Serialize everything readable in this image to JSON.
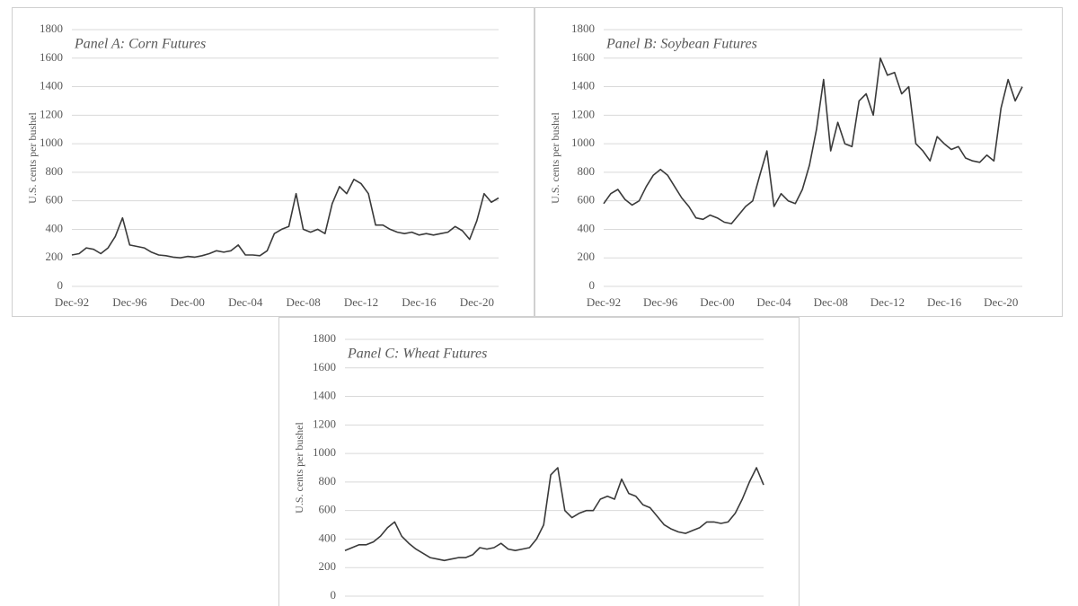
{
  "chart_data": [
    {
      "type": "line",
      "title": "Panel A: Corn Futures",
      "y_label": "U.S. cents per bushel",
      "categories": [
        "Dec-92",
        null,
        null,
        null,
        null,
        null,
        null,
        null,
        "Dec-96",
        null,
        null,
        null,
        null,
        null,
        null,
        null,
        "Dec-00",
        null,
        null,
        null,
        null,
        null,
        null,
        null,
        "Dec-04",
        null,
        null,
        null,
        null,
        null,
        null,
        null,
        "Dec-08",
        null,
        null,
        null,
        null,
        null,
        null,
        null,
        "Dec-12",
        null,
        null,
        null,
        null,
        null,
        null,
        null,
        "Dec-16",
        null,
        null,
        null,
        null,
        null,
        null,
        null,
        "Dec-20",
        null,
        null,
        null
      ],
      "values": [
        220,
        230,
        270,
        260,
        230,
        270,
        350,
        480,
        290,
        280,
        270,
        240,
        220,
        215,
        205,
        200,
        210,
        205,
        215,
        230,
        250,
        240,
        250,
        290,
        220,
        220,
        215,
        250,
        370,
        400,
        420,
        650,
        400,
        380,
        400,
        370,
        580,
        700,
        650,
        750,
        720,
        650,
        430,
        430,
        400,
        380,
        370,
        380,
        360,
        370,
        360,
        370,
        380,
        420,
        390,
        330,
        460,
        650,
        590,
        620
      ],
      "color": "#3a3a3a",
      "ylim": [
        0,
        1800
      ],
      "yticks": [
        0,
        200,
        400,
        600,
        800,
        1000,
        1200,
        1400,
        1600,
        1800
      ],
      "grid": true
    },
    {
      "type": "line",
      "title": "Panel B: Soybean Futures",
      "y_label": "U.S. cents per bushel",
      "categories": [
        "Dec-92",
        null,
        null,
        null,
        null,
        null,
        null,
        null,
        "Dec-96",
        null,
        null,
        null,
        null,
        null,
        null,
        null,
        "Dec-00",
        null,
        null,
        null,
        null,
        null,
        null,
        null,
        "Dec-04",
        null,
        null,
        null,
        null,
        null,
        null,
        null,
        "Dec-08",
        null,
        null,
        null,
        null,
        null,
        null,
        null,
        "Dec-12",
        null,
        null,
        null,
        null,
        null,
        null,
        null,
        "Dec-16",
        null,
        null,
        null,
        null,
        null,
        null,
        null,
        "Dec-20",
        null,
        null,
        null
      ],
      "values": [
        580,
        650,
        680,
        610,
        570,
        600,
        700,
        780,
        820,
        780,
        700,
        620,
        560,
        480,
        470,
        500,
        480,
        450,
        440,
        500,
        560,
        600,
        780,
        950,
        560,
        650,
        600,
        580,
        680,
        850,
        1100,
        1450,
        950,
        1150,
        1000,
        980,
        1300,
        1350,
        1200,
        1600,
        1480,
        1500,
        1350,
        1400,
        1000,
        950,
        880,
        1050,
        1000,
        960,
        980,
        900,
        880,
        870,
        920,
        880,
        1250,
        1450,
        1300,
        1400
      ],
      "color": "#3a3a3a",
      "ylim": [
        0,
        1800
      ],
      "yticks": [
        0,
        200,
        400,
        600,
        800,
        1000,
        1200,
        1400,
        1600,
        1800
      ],
      "grid": true
    },
    {
      "type": "line",
      "title": "Panel C: Wheat Futures",
      "y_label": "U.S. cents per bushel",
      "values": [
        320,
        340,
        360,
        360,
        380,
        420,
        480,
        520,
        420,
        370,
        330,
        300,
        270,
        260,
        250,
        260,
        270,
        270,
        290,
        340,
        330,
        340,
        370,
        330,
        320,
        330,
        340,
        400,
        500,
        850,
        900,
        600,
        550,
        580,
        600,
        600,
        680,
        700,
        680,
        820,
        720,
        700,
        640,
        620,
        560,
        500,
        470,
        450,
        440,
        460,
        480,
        520,
        520,
        510,
        520,
        580,
        680,
        800,
        900,
        780
      ],
      "color": "#3a3a3a",
      "ylim": [
        0,
        1800
      ],
      "yticks": [
        0,
        200,
        400,
        600,
        800,
        1000,
        1200,
        1400,
        1600,
        1800
      ],
      "grid": true
    }
  ]
}
